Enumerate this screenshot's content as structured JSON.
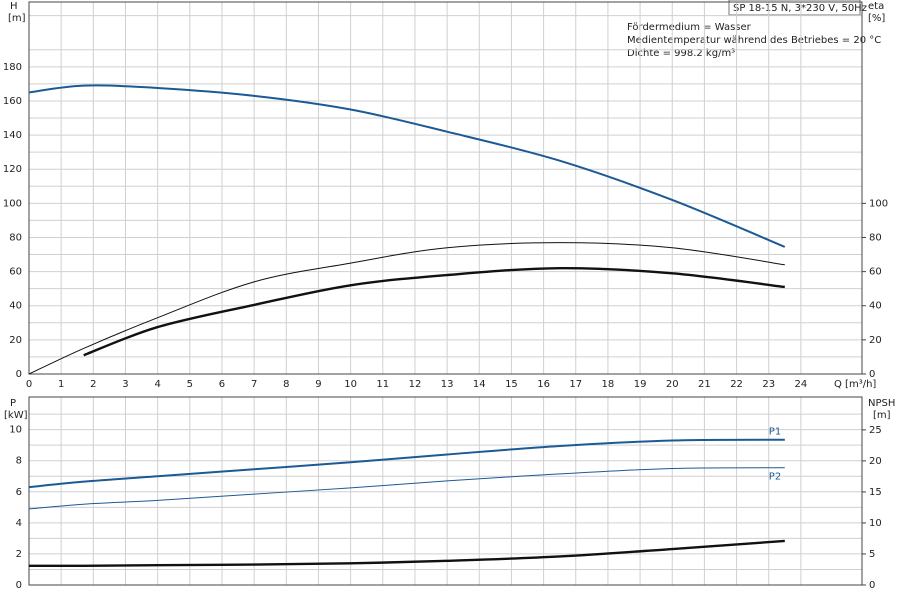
{
  "chart_data": [
    {
      "type": "line",
      "title": "SP 18-15 N, 3*230 V, 50Hz",
      "annotations": [
        "Fördermedium = Wasser",
        "Medientemperatur während des Betriebes = 20 °C",
        "Dichte = 998.2 kg/m³"
      ],
      "ylabel": "H",
      "yunit": "[m]",
      "y2label": "eta",
      "y2unit": "[%]",
      "xlabel": "Q [m³/h]",
      "x": [
        0,
        1.7,
        4,
        7,
        10,
        13,
        16.5,
        20,
        23.5
      ],
      "xlim": [
        0,
        25.9
      ],
      "xticks": [
        0,
        1,
        2,
        3,
        4,
        5,
        6,
        7,
        8,
        9,
        10,
        11,
        12,
        13,
        14,
        15,
        16,
        17,
        18,
        19,
        20,
        21,
        22,
        23,
        24
      ],
      "show_xtick_labels": true,
      "ylim": [
        0,
        218
      ],
      "yticks": [
        0,
        20,
        40,
        60,
        80,
        100,
        120,
        140,
        160,
        180
      ],
      "minor_yticks": [
        10,
        30,
        50,
        70,
        90,
        110,
        130,
        150,
        170,
        190,
        210
      ],
      "y2lim": [
        0,
        218
      ],
      "y2ticks": [
        0,
        20,
        40,
        60,
        80,
        100
      ],
      "grid": true,
      "series": [
        {
          "color": "#1c5a96",
          "width": 2,
          "values": [
            165,
            169,
            167.6,
            163,
            155,
            142,
            125,
            102,
            74.5
          ]
        },
        {
          "color": "#111111",
          "width": 1,
          "axis": "y2",
          "values": [
            0,
            15,
            33,
            54,
            65,
            74,
            77,
            74,
            64
          ]
        },
        {
          "color": "#111111",
          "width": 2.4,
          "axis": "y2",
          "values": [
            null,
            11,
            27.5,
            40.5,
            52,
            58,
            62,
            59,
            51
          ]
        }
      ]
    },
    {
      "type": "line",
      "ylabel": "P",
      "yunit": "[kW]",
      "y2label": "NPSH",
      "y2unit": "[m]",
      "x": [
        0,
        1.7,
        4,
        7,
        10,
        13,
        16.5,
        20,
        23.5
      ],
      "xlim": [
        0,
        25.9
      ],
      "xticks": [
        0,
        1,
        2,
        3,
        4,
        5,
        6,
        7,
        8,
        9,
        10,
        11,
        12,
        13,
        14,
        15,
        16,
        17,
        18,
        19,
        20,
        21,
        22,
        23,
        24
      ],
      "show_xtick_labels": false,
      "ylim": [
        0,
        12.1
      ],
      "yticks": [
        0,
        2,
        4,
        6,
        8,
        10
      ],
      "minor_yticks": [
        1,
        3,
        5,
        7,
        9,
        11
      ],
      "y2lim": [
        0,
        30.3
      ],
      "y2ticks": [
        0,
        5,
        10,
        15,
        20,
        25
      ],
      "grid": true,
      "series": [
        {
          "name": "P1",
          "color": "#1c5a96",
          "width": 2,
          "values": [
            6.3,
            6.65,
            7.0,
            7.45,
            7.9,
            8.4,
            8.95,
            9.3,
            9.35
          ]
        },
        {
          "name": "P2",
          "color": "#1c5a96",
          "width": 1,
          "values": [
            4.9,
            5.2,
            5.45,
            5.85,
            6.25,
            6.7,
            7.15,
            7.5,
            7.55
          ]
        },
        {
          "color": "#111111",
          "width": 2.4,
          "axis": "y2",
          "values": [
            3.1,
            3.1,
            3.2,
            3.3,
            3.5,
            3.9,
            4.6,
            5.8,
            7.1
          ]
        }
      ]
    }
  ]
}
